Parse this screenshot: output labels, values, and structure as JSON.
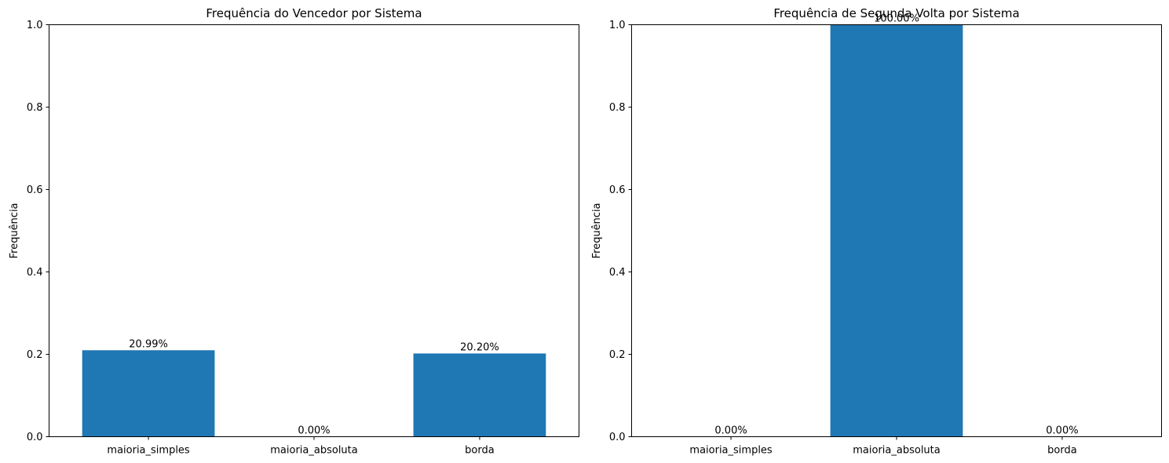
{
  "chart_data": [
    {
      "type": "bar",
      "title": "Frequência do Vencedor por Sistema",
      "xlabel": "",
      "ylabel": "Frequência",
      "ylim": [
        0,
        1.0
      ],
      "yticks": [
        "0.0",
        "0.2",
        "0.4",
        "0.6",
        "0.8",
        "1.0"
      ],
      "categories": [
        "maioria_simples",
        "maioria_absoluta",
        "borda"
      ],
      "values": [
        0.2099,
        0.0,
        0.202
      ],
      "data_labels": [
        "20.99%",
        "0.00%",
        "20.20%"
      ],
      "bar_color": "#1f77b4",
      "grid": false
    },
    {
      "type": "bar",
      "title": "Frequência de Segunda Volta por Sistema",
      "xlabel": "",
      "ylabel": "Frequência",
      "ylim": [
        0,
        1.0
      ],
      "yticks": [
        "0.0",
        "0.2",
        "0.4",
        "0.6",
        "0.8",
        "1.0"
      ],
      "categories": [
        "maioria_simples",
        "maioria_absoluta",
        "borda"
      ],
      "values": [
        0.0,
        1.0,
        0.0
      ],
      "data_labels": [
        "0.00%",
        "100.00%",
        "0.00%"
      ],
      "bar_color": "#1f77b4",
      "grid": false
    }
  ]
}
